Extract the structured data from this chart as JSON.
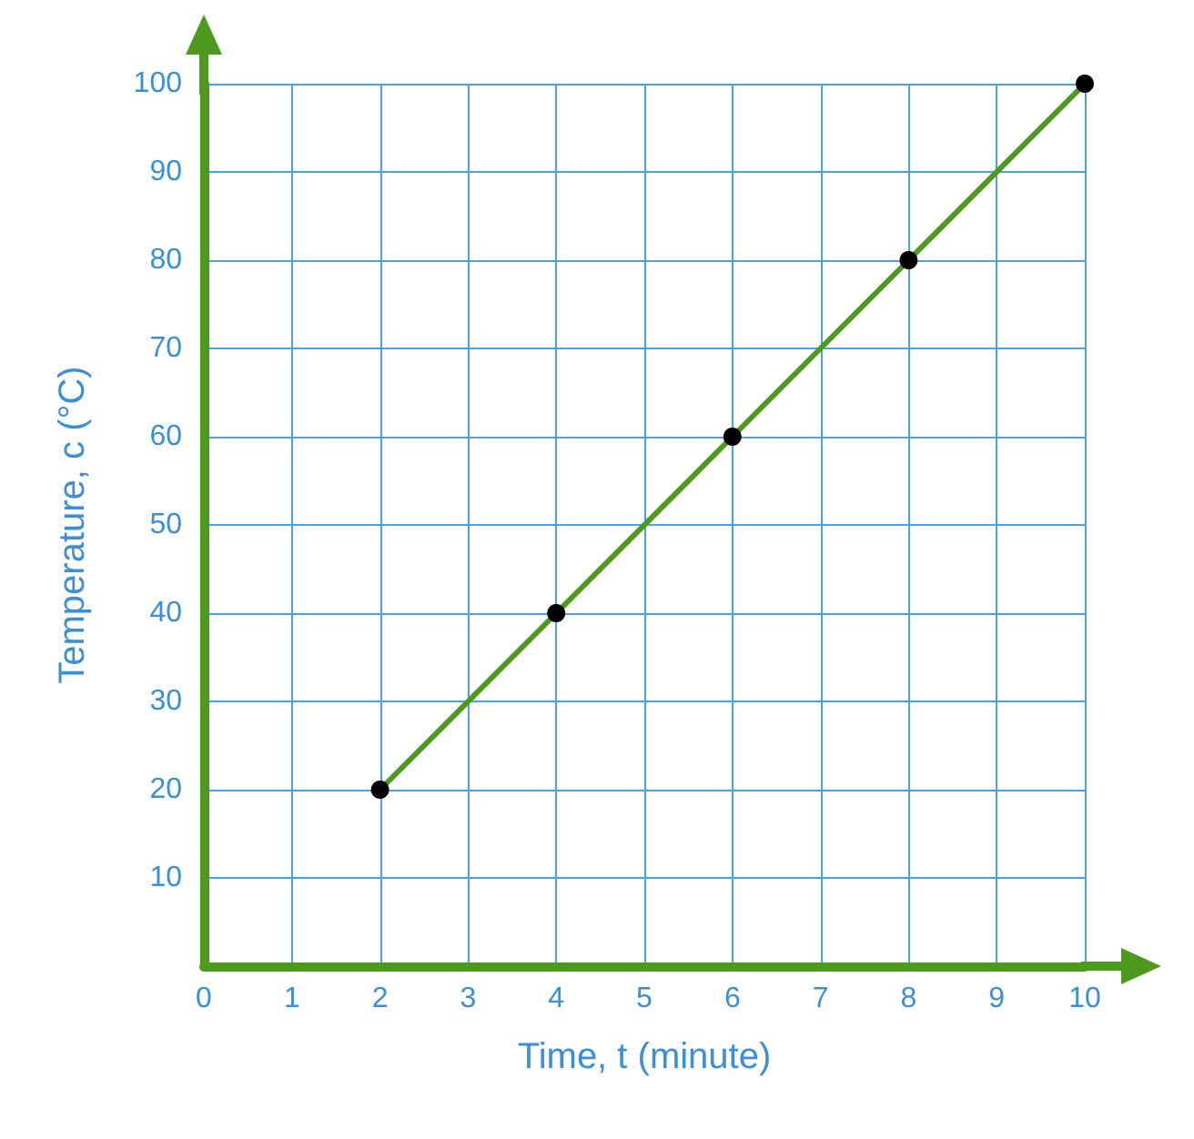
{
  "chart_data": {
    "type": "line",
    "xlabel": "Time, t (minute)",
    "ylabel": "Temperature, c (°C)",
    "x": [
      2,
      4,
      6,
      8,
      10
    ],
    "series": [
      {
        "color": "#4e9a1e",
        "values": [
          20,
          40,
          60,
          80,
          100
        ]
      }
    ],
    "xlim": [
      0,
      10
    ],
    "ylim": [
      0,
      100
    ],
    "xticks": [
      0,
      1,
      2,
      3,
      4,
      5,
      6,
      7,
      8,
      9,
      10
    ],
    "yticks": [
      {
        "value": 0,
        "label": null
      },
      10,
      20,
      30,
      40,
      50,
      60,
      70,
      80,
      90,
      100
    ],
    "grid": true,
    "marker": "circle",
    "line_style": "solid"
  }
}
